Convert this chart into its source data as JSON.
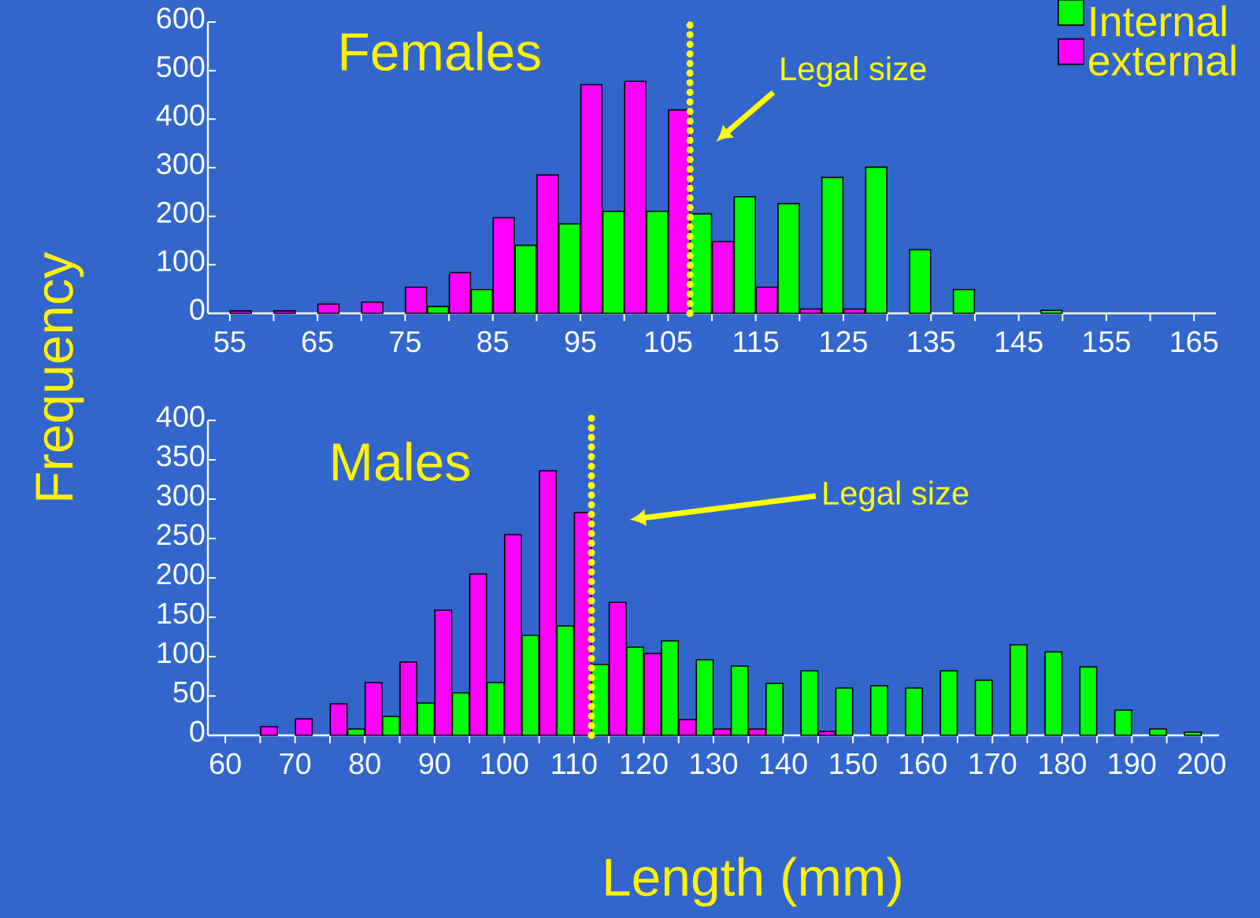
{
  "chart_data": [
    {
      "type": "bar",
      "title": "Females",
      "ylabel": "Frequency",
      "legend": "top right",
      "x": [
        57.5,
        62.5,
        67.5,
        72.5,
        77.5,
        82.5,
        87.5,
        92.5,
        97.5,
        102.5,
        107.5,
        112.5,
        117.5,
        122.5,
        127.5,
        132.5,
        137.5,
        142.5,
        147.5
      ],
      "series": [
        {
          "name": "external",
          "color": "#ff00ff",
          "values": [
            5,
            5,
            19,
            23,
            54,
            84,
            197,
            285,
            471,
            478,
            419,
            148,
            54,
            9,
            9,
            null,
            null,
            null,
            null
          ]
        },
        {
          "name": "Internal",
          "color": "#00ff00",
          "values": [
            null,
            null,
            null,
            null,
            14,
            49,
            140,
            184,
            210,
            210,
            205,
            240,
            226,
            280,
            301,
            131,
            49,
            null,
            6
          ]
        }
      ],
      "xlim": [
        52.5,
        167.5
      ],
      "xticks": [
        55,
        {
          "value": 60,
          "label": null
        },
        65,
        {
          "value": 70,
          "label": null
        },
        75,
        {
          "value": 80,
          "label": null
        },
        85,
        {
          "value": 90,
          "label": null
        },
        95,
        {
          "value": 100,
          "label": null
        },
        105,
        {
          "value": 110,
          "label": null
        },
        115,
        {
          "value": 120,
          "label": null
        },
        125,
        {
          "value": 130,
          "label": null
        },
        135,
        {
          "value": 140,
          "label": null
        },
        145,
        {
          "value": 150,
          "label": null
        },
        155,
        {
          "value": 160,
          "label": null
        },
        165
      ],
      "ylim": [
        0,
        600
      ],
      "yticks": [
        0,
        100,
        200,
        300,
        400,
        500,
        600
      ],
      "ref_lines": [
        {
          "axis": "x",
          "value": 107.5,
          "label": "Legal size",
          "color": "#ffff00",
          "line_style": "dotted"
        }
      ]
    },
    {
      "type": "bar",
      "title": "Males",
      "xlabel": "Length (mm)",
      "x": [
        67.5,
        72.5,
        77.5,
        82.5,
        87.5,
        92.5,
        97.5,
        102.5,
        107.5,
        112.5,
        117.5,
        122.5,
        127.5,
        132.5,
        137.5,
        142.5,
        147.5,
        152.5,
        157.5,
        162.5,
        167.5,
        172.5,
        177.5,
        182.5,
        187.5,
        192.5,
        197.5
      ],
      "series": [
        {
          "color": "#ff00ff",
          "values": [
            11,
            21,
            40,
            67,
            93,
            159,
            205,
            255,
            336,
            283,
            169,
            104,
            20,
            8,
            8,
            null,
            5,
            null,
            null,
            null,
            null,
            null,
            null,
            null,
            null,
            null,
            null
          ]
        },
        {
          "color": "#00ff00",
          "values": [
            null,
            null,
            8,
            24,
            41,
            54,
            67,
            127,
            139,
            90,
            112,
            120,
            96,
            88,
            66,
            82,
            60,
            63,
            60,
            82,
            70,
            115,
            106,
            87,
            32,
            8,
            4
          ]
        }
      ],
      "xlim": [
        57.5,
        202.5
      ],
      "xticks": [
        60,
        {
          "value": 65,
          "label": null
        },
        70,
        {
          "value": 75,
          "label": null
        },
        80,
        {
          "value": 85,
          "label": null
        },
        90,
        {
          "value": 95,
          "label": null
        },
        100,
        {
          "value": 105,
          "label": null
        },
        110,
        {
          "value": 115,
          "label": null
        },
        120,
        {
          "value": 125,
          "label": null
        },
        130,
        {
          "value": 135,
          "label": null
        },
        140,
        {
          "value": 145,
          "label": null
        },
        150,
        {
          "value": 155,
          "label": null
        },
        160,
        {
          "value": 165,
          "label": null
        },
        170,
        {
          "value": 175,
          "label": null
        },
        180,
        {
          "value": 185,
          "label": null
        },
        190,
        {
          "value": 195,
          "label": null
        },
        200
      ],
      "ylim": [
        0,
        400
      ],
      "yticks": [
        0,
        50,
        100,
        150,
        200,
        250,
        300,
        350,
        400
      ],
      "ref_lines": [
        {
          "axis": "x",
          "value": 112.5,
          "label": "Legal size",
          "color": "#ffff00",
          "line_style": "dotted"
        }
      ]
    }
  ]
}
